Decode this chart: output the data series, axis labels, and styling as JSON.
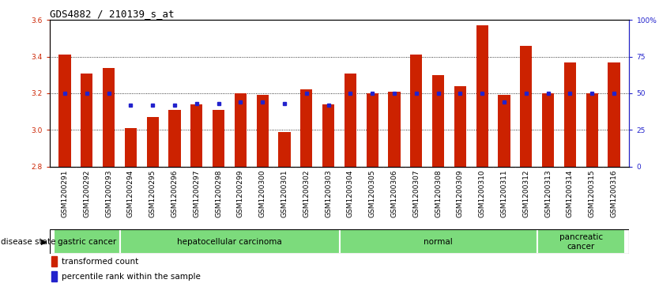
{
  "title": "GDS4882 / 210139_s_at",
  "samples": [
    "GSM1200291",
    "GSM1200292",
    "GSM1200293",
    "GSM1200294",
    "GSM1200295",
    "GSM1200296",
    "GSM1200297",
    "GSM1200298",
    "GSM1200299",
    "GSM1200300",
    "GSM1200301",
    "GSM1200302",
    "GSM1200303",
    "GSM1200304",
    "GSM1200305",
    "GSM1200306",
    "GSM1200307",
    "GSM1200308",
    "GSM1200309",
    "GSM1200310",
    "GSM1200311",
    "GSM1200312",
    "GSM1200313",
    "GSM1200314",
    "GSM1200315",
    "GSM1200316"
  ],
  "bar_values": [
    3.41,
    3.31,
    3.34,
    3.01,
    3.07,
    3.11,
    3.14,
    3.11,
    3.2,
    3.19,
    2.99,
    3.22,
    3.14,
    3.31,
    3.2,
    3.21,
    3.41,
    3.3,
    3.24,
    3.57,
    3.19,
    3.46,
    3.2,
    3.37,
    3.2,
    3.37
  ],
  "percentile_values": [
    50,
    50,
    50,
    42,
    42,
    42,
    43,
    43,
    44,
    44,
    43,
    50,
    42,
    50,
    50,
    50,
    50,
    50,
    50,
    50,
    44,
    50,
    50,
    50,
    50,
    50
  ],
  "disease_groups": [
    {
      "label": "gastric cancer",
      "start": 0,
      "end": 3
    },
    {
      "label": "hepatocellular carcinoma",
      "start": 3,
      "end": 13
    },
    {
      "label": "normal",
      "start": 13,
      "end": 22
    },
    {
      "label": "pancreatic\ncancer",
      "start": 22,
      "end": 26
    }
  ],
  "ylim_left": [
    2.8,
    3.6
  ],
  "ylim_right": [
    0,
    100
  ],
  "yticks_left": [
    2.8,
    3.0,
    3.2,
    3.4,
    3.6
  ],
  "yticks_right": [
    0,
    25,
    50,
    75,
    100
  ],
  "grid_lines": [
    3.0,
    3.2,
    3.4
  ],
  "bar_color": "#cc2200",
  "dot_color": "#2222cc",
  "tick_label_bg": "#d0d0d0",
  "disease_bg": "#7cdb7c",
  "white": "#ffffff",
  "title_fontsize": 9,
  "tick_fontsize": 6.5,
  "label_fontsize": 7.5,
  "bar_width": 0.55
}
